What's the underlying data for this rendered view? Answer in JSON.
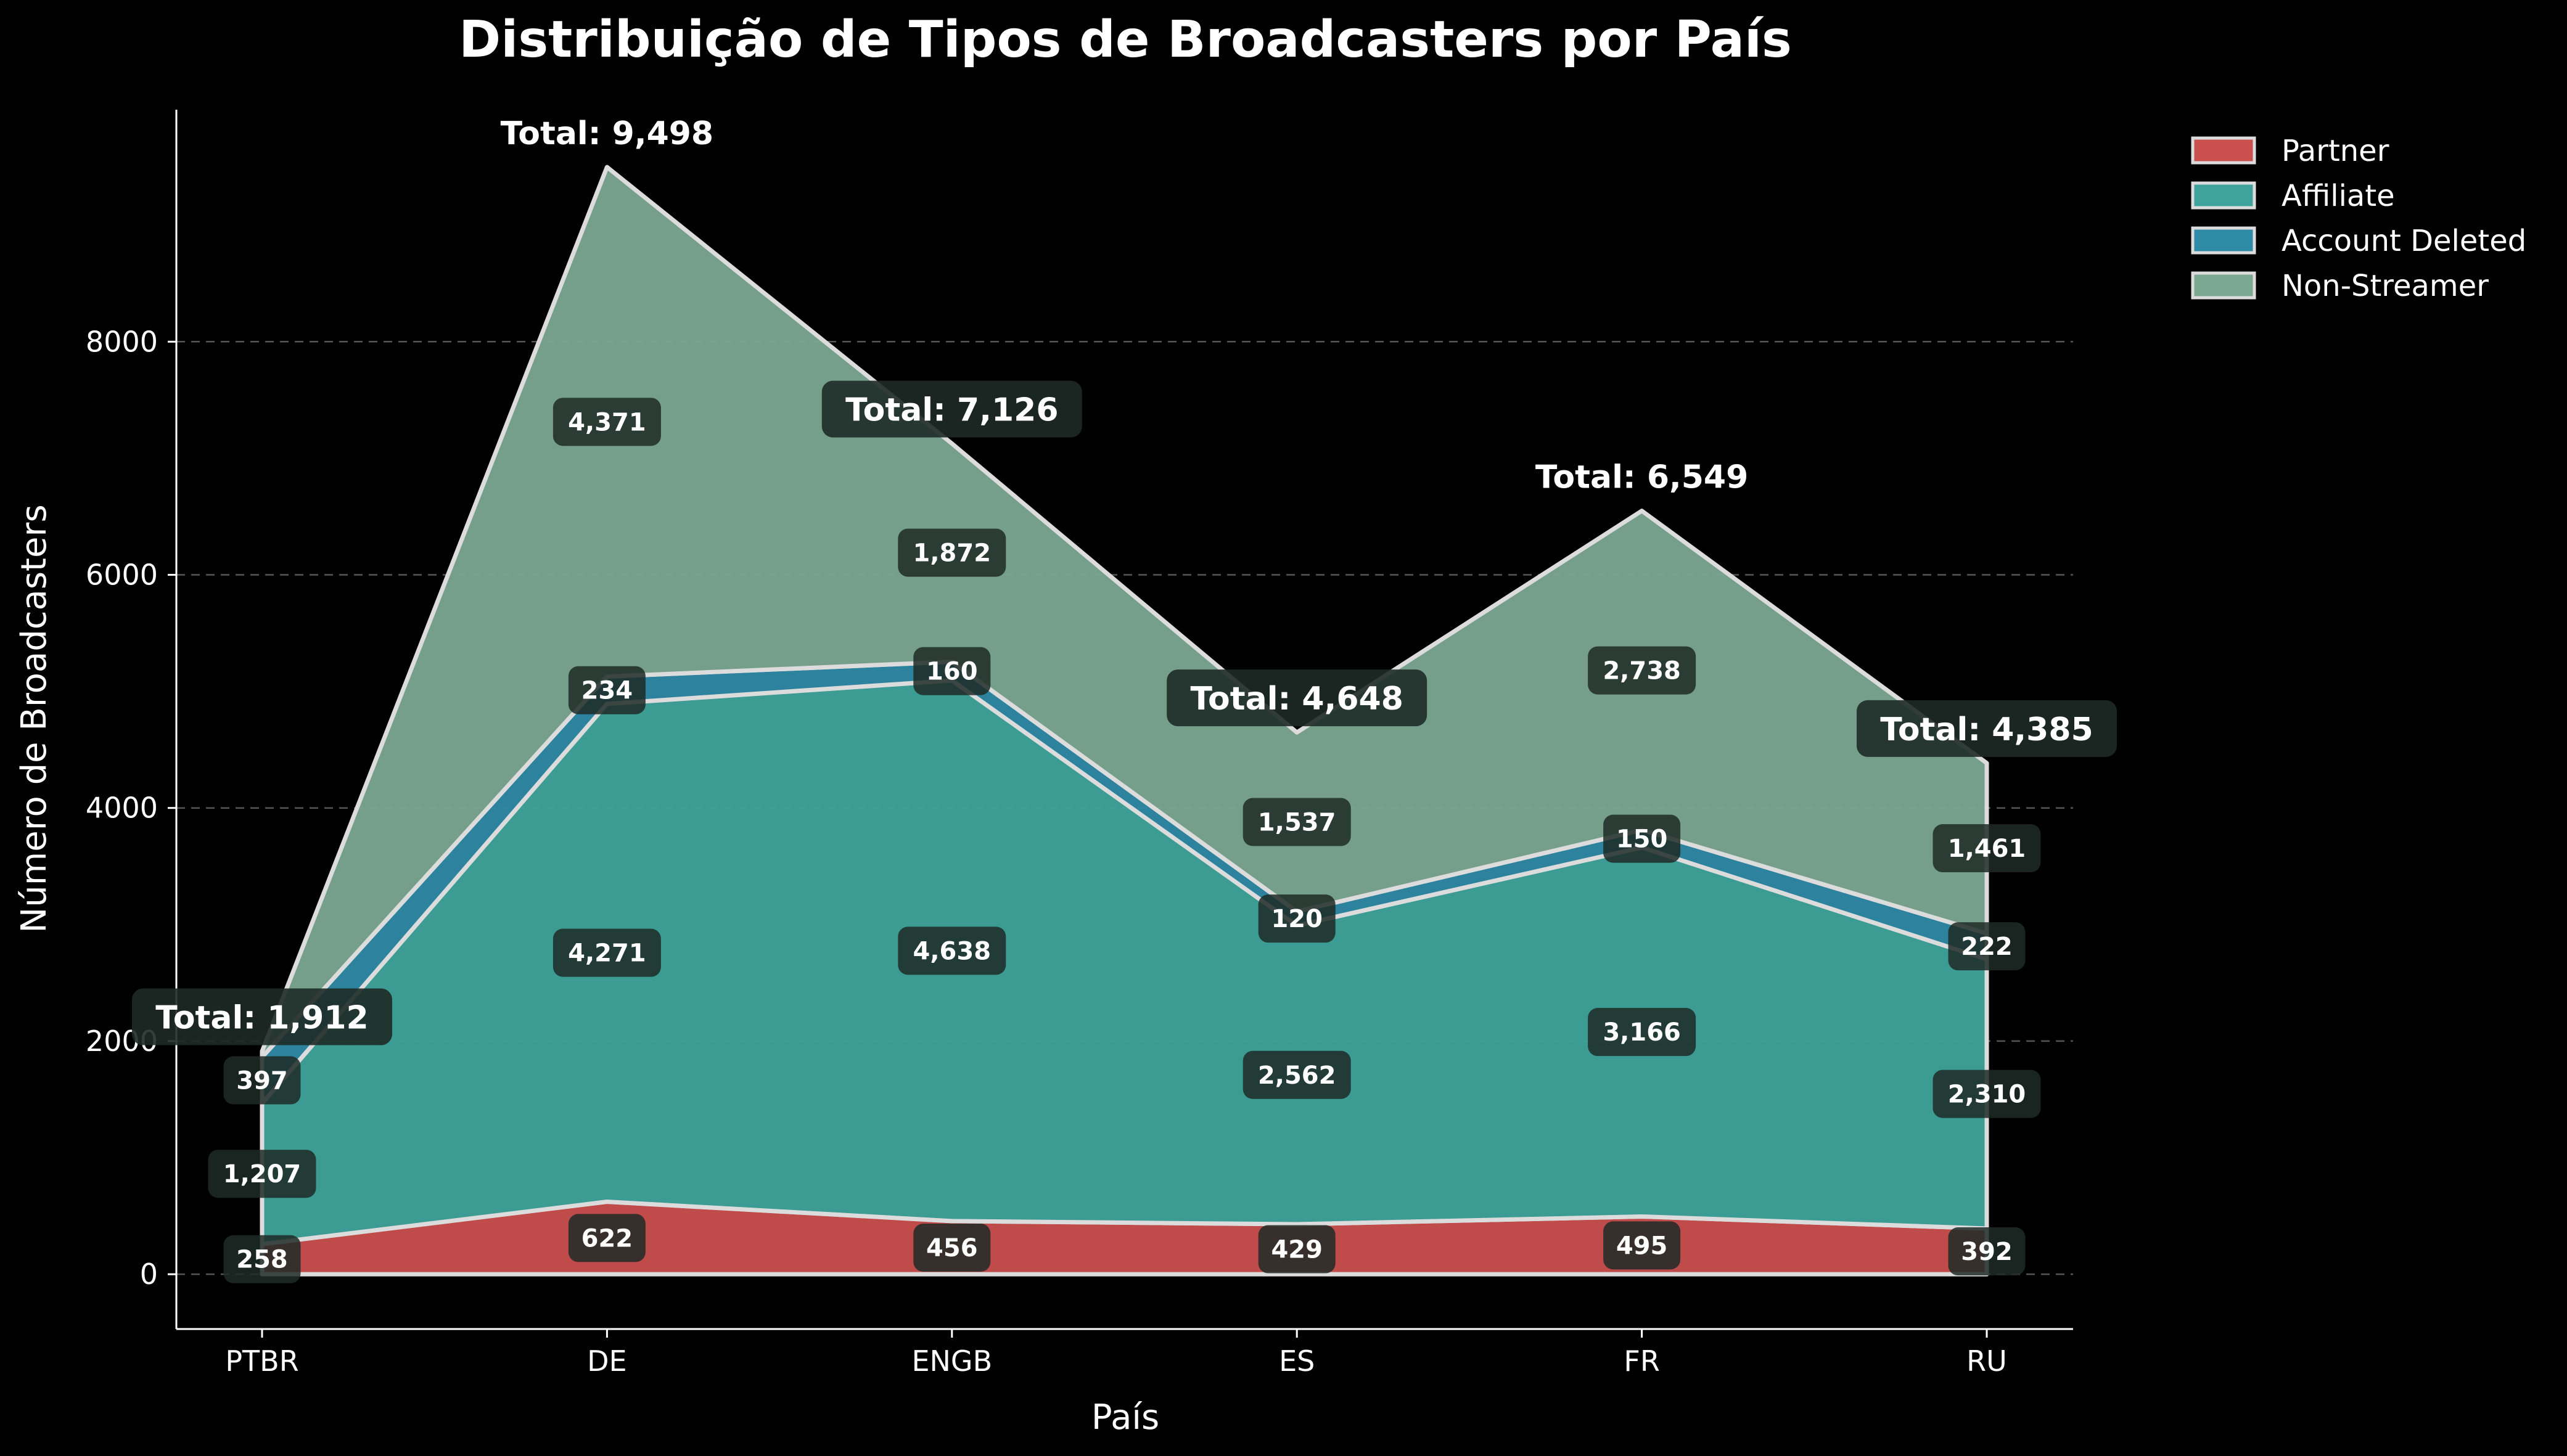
{
  "colors": {
    "background": "#000000",
    "Partner": "#c9504f",
    "Affiliate": "#3fa39b",
    "Account Deleted": "#2f8aa6",
    "Non-Streamer": "#7ba891",
    "outline": "#dcdcdc",
    "label_box": "#1e2a26"
  },
  "chart_data": {
    "type": "area",
    "stacked": true,
    "title": "Distribuição de Tipos de Broadcasters por País",
    "xlabel": "País",
    "ylabel": "Número de Broadcasters",
    "categories": [
      "PTBR",
      "DE",
      "ENGB",
      "ES",
      "FR",
      "RU"
    ],
    "ylim": [
      -470,
      9990
    ],
    "yticks": [
      "0",
      "2000",
      "4000",
      "6000",
      "8000"
    ],
    "grid": "horizontal dashed",
    "legend_position": "outside right top",
    "series": [
      {
        "name": "Partner",
        "values": [
          258,
          622,
          456,
          429,
          495,
          392
        ],
        "labels": [
          "258",
          "622",
          "456",
          "429",
          "495",
          "392"
        ]
      },
      {
        "name": "Affiliate",
        "values": [
          1207,
          4271,
          4638,
          2562,
          3166,
          2310
        ],
        "labels": [
          "1,207",
          "4,271",
          "4,638",
          "2,562",
          "3,166",
          "2,310"
        ]
      },
      {
        "name": "Account Deleted",
        "values": [
          397,
          234,
          160,
          120,
          150,
          222
        ],
        "labels": [
          "397",
          "234",
          "160",
          "120",
          "150",
          "222"
        ]
      },
      {
        "name": "Non-Streamer",
        "values": [
          50,
          4371,
          1872,
          1537,
          2738,
          1461
        ],
        "labels": [
          "",
          "4,371",
          "1,872",
          "1,537",
          "2,738",
          "1,461"
        ]
      }
    ],
    "totals": [
      1912,
      9498,
      7126,
      4648,
      6549,
      4385
    ],
    "total_labels": [
      "Total: 1,912",
      "Total: 9,498",
      "Total: 7,126",
      "Total: 4,648",
      "Total: 6,549",
      "Total: 4,385"
    ],
    "total_label_boxed": [
      true,
      false,
      true,
      true,
      false,
      true
    ]
  }
}
